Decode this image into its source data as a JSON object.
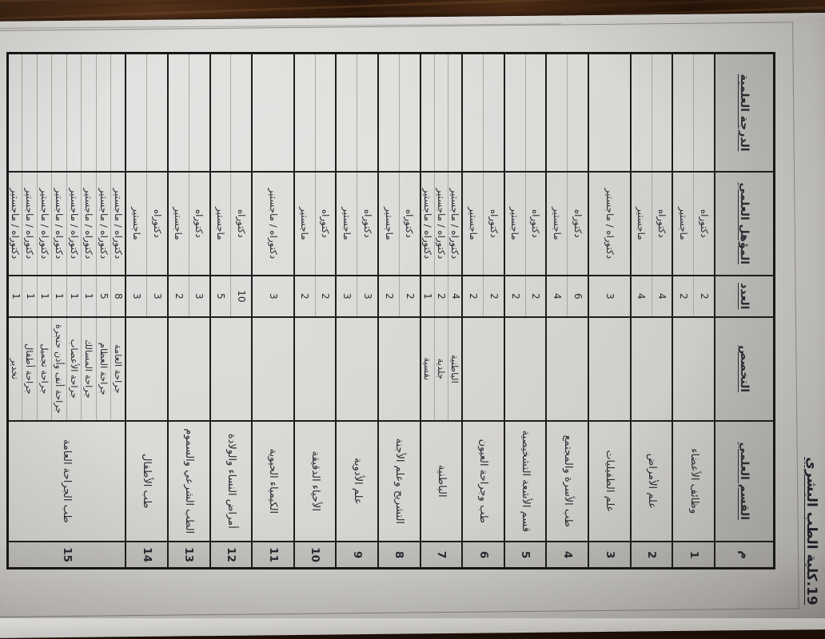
{
  "title": "19.كلية الطب البشري",
  "table": {
    "headers": {
      "num": "م",
      "department": "القسم العلمي",
      "specialty": "التخصص",
      "count": "العدد",
      "qualification": "المؤهل العلمي",
      "degree": "الدرجة العلمية"
    },
    "rows": [
      {
        "num": "1",
        "department": "وظائف الأعضاء",
        "block": 52,
        "subrows": [
          {
            "specialty": "",
            "count": "2",
            "qualification": "دكتوراه"
          },
          {
            "specialty": "",
            "count": "2",
            "qualification": "ماجستير"
          }
        ]
      },
      {
        "num": "2",
        "department": "علم الأمراض",
        "block": 52,
        "subrows": [
          {
            "specialty": "",
            "count": "4",
            "qualification": "دكتوراه"
          },
          {
            "specialty": "",
            "count": "4",
            "qualification": "ماجستير"
          }
        ]
      },
      {
        "num": "3",
        "department": "علم الطفيليات",
        "block": 52,
        "subrows": [
          {
            "specialty": "",
            "count": "3",
            "qualification": "دكتوراه / ماجستير"
          }
        ]
      },
      {
        "num": "4",
        "department": "طب الأسرة والمجتمع",
        "block": 52,
        "subrows": [
          {
            "specialty": "",
            "count": "6",
            "qualification": "دكتوراه"
          },
          {
            "specialty": "",
            "count": "4",
            "qualification": "ماجستير"
          }
        ]
      },
      {
        "num": "5",
        "department": "قسم الأشعة التشخيصية",
        "block": 52,
        "subrows": [
          {
            "specialty": "",
            "count": "2",
            "qualification": "دكتوراه"
          },
          {
            "specialty": "",
            "count": "2",
            "qualification": "ماجستير"
          }
        ]
      },
      {
        "num": "6",
        "department": "طب وجراحة العيون",
        "block": 52,
        "subrows": [
          {
            "specialty": "",
            "count": "2",
            "qualification": "دكتوراه"
          },
          {
            "specialty": "",
            "count": "2",
            "qualification": "ماجستير"
          }
        ]
      },
      {
        "num": "7",
        "department": "الباطنية",
        "block": 52,
        "subrows": [
          {
            "specialty": "الباطنية",
            "count": "4",
            "qualification": "دكتوراه / ماجستير"
          },
          {
            "specialty": "جلدية",
            "count": "2",
            "qualification": "دكتوراه / ماجستير"
          },
          {
            "specialty": "نفسية",
            "count": "1",
            "qualification": "دكتوراه / ماجستير"
          }
        ]
      },
      {
        "num": "8",
        "department": "التشريح وعلم الأجنة",
        "block": 52,
        "subrows": [
          {
            "specialty": "",
            "count": "2",
            "qualification": "دكتوراه"
          },
          {
            "specialty": "",
            "count": "2",
            "qualification": "ماجستير"
          }
        ]
      },
      {
        "num": "9",
        "department": "علم الأدوية",
        "block": 52,
        "subrows": [
          {
            "specialty": "",
            "count": "3",
            "qualification": "دكتوراه"
          },
          {
            "specialty": "",
            "count": "3",
            "qualification": "ماجستير"
          }
        ]
      },
      {
        "num": "10",
        "department": "الأحياء الدقيقة",
        "block": 52,
        "subrows": [
          {
            "specialty": "",
            "count": "2",
            "qualification": "دكتوراه"
          },
          {
            "specialty": "",
            "count": "2",
            "qualification": "ماجستير"
          }
        ]
      },
      {
        "num": "11",
        "department": "الكيمياء الحيوية",
        "block": 52,
        "subrows": [
          {
            "specialty": "",
            "count": "3",
            "qualification": "دكتوراه / ماجستير"
          }
        ]
      },
      {
        "num": "12",
        "department": "أمراض النساء والولادة",
        "block": 52,
        "subrows": [
          {
            "specialty": "",
            "count": "10",
            "qualification": "دكتوراه"
          },
          {
            "specialty": "",
            "count": "5",
            "qualification": "ماجستير"
          }
        ]
      },
      {
        "num": "13",
        "department": "الطب الشرعي والسموم",
        "block": 52,
        "subrows": [
          {
            "specialty": "",
            "count": "3",
            "qualification": "دكتوراه"
          },
          {
            "specialty": "",
            "count": "2",
            "qualification": "ماجستير"
          }
        ]
      },
      {
        "num": "14",
        "department": "طب الأطفال",
        "block": 52,
        "subrows": [
          {
            "specialty": "",
            "count": "3",
            "qualification": "دكتوراه"
          },
          {
            "specialty": "",
            "count": "3",
            "qualification": "ماجستير"
          }
        ]
      },
      {
        "num": "15",
        "department": "طب الجراحة العامة",
        "block": 146,
        "subrows": [
          {
            "specialty": "جراحة العامة",
            "count": "8",
            "qualification": "دكتوراه / ماجستير"
          },
          {
            "specialty": "جراحة العظام",
            "count": "5",
            "qualification": "دكتوراه / ماجستير"
          },
          {
            "specialty": "جراحة المسالك",
            "count": "1",
            "qualification": "دكتوراه / ماجستير"
          },
          {
            "specialty": "جراحة الأعصاب",
            "count": "1",
            "qualification": "دكتوراه / ماجستير"
          },
          {
            "specialty": "جراحة أنف وأذن حنجرة",
            "count": "1",
            "qualification": "دكتوراه / ماجستير"
          },
          {
            "specialty": "جراحة تجميل",
            "count": "1",
            "qualification": "دكتوراه / ماجستير"
          },
          {
            "specialty": "جراحة أطفال",
            "count": "1",
            "qualification": "دكتوراه / ماجستير"
          },
          {
            "specialty": "تخدير",
            "count": "1",
            "qualification": "دكتوراه / ماجستير"
          }
        ]
      }
    ],
    "degree_column_empty": true
  },
  "colors": {
    "desk_wood": "#3a2212",
    "paper": "#d8d7d3",
    "ink": "#2a2a32",
    "grid_thick": "#1d1d1d",
    "grid_thin": "#a8a7a3",
    "header_shade": "rgba(20,20,25,0.085)"
  }
}
